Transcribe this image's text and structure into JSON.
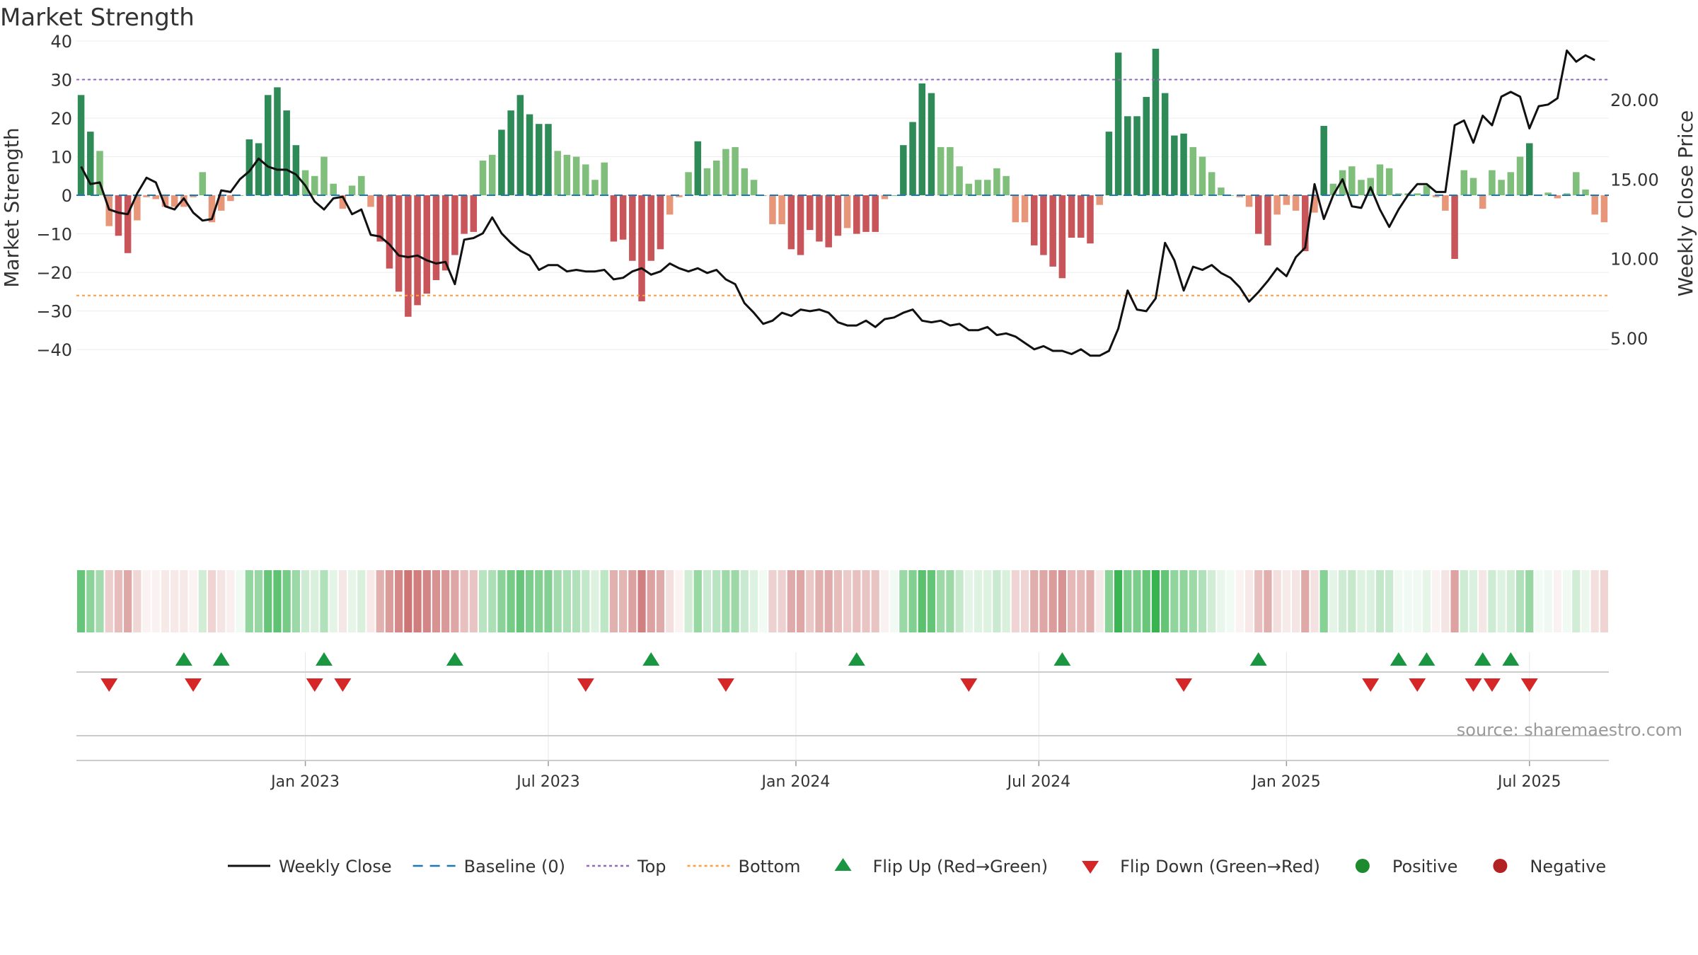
{
  "chart_data": {
    "type": "bar",
    "title": "Market Strength",
    "ylabel_left": "Market Strength",
    "ylabel_right": "Weekly Close Price",
    "source": "source: sharemaestro.com",
    "ylim_left": [
      -42,
      40
    ],
    "ylim_right": [
      3.8,
      23.7
    ],
    "yticks_left": [
      40,
      30,
      20,
      10,
      0,
      -10,
      -20,
      -30,
      -40
    ],
    "yticks_right": [
      {
        "value": 20,
        "label": "20.00"
      },
      {
        "value": 15,
        "label": "15.00"
      },
      {
        "value": 10,
        "label": "10.00"
      },
      {
        "value": 5,
        "label": "5.00"
      }
    ],
    "top_level": 30,
    "bottom_level": -26,
    "x_tick_labels": [
      {
        "week": 24,
        "label": "Jan 2023"
      },
      {
        "week": 50,
        "label": "Jul 2023"
      },
      {
        "week": 76.5,
        "label": "Jan 2024"
      },
      {
        "week": 102.5,
        "label": "Jul 2024"
      },
      {
        "week": 129,
        "label": "Jan 2025"
      },
      {
        "week": 155,
        "label": "Jul 2025"
      }
    ],
    "strength": [
      26,
      16.5,
      11.5,
      -8,
      -10.5,
      -15,
      -6.5,
      -0.5,
      -1,
      -3,
      -3,
      -3,
      -0.5,
      6,
      -7,
      -4,
      -1.5,
      0,
      14.5,
      13.5,
      26,
      28,
      22,
      13,
      6.5,
      5,
      10,
      3,
      -3.5,
      2.5,
      5,
      -3,
      -12,
      -19,
      -25,
      -31.5,
      -28.5,
      -25.5,
      -22,
      -19.5,
      -15.5,
      -10,
      -9.5,
      9,
      10.5,
      17,
      22,
      26,
      21,
      18.5,
      18.5,
      11.5,
      10.5,
      10,
      8,
      4,
      8.5,
      -12,
      -11.5,
      -17,
      -27.5,
      -17,
      -14,
      -5,
      -0.5,
      6,
      14,
      7,
      9,
      12,
      12.5,
      7,
      4,
      0,
      -7.5,
      -7.5,
      -14,
      -15.5,
      -9,
      -12,
      -13.5,
      -10.5,
      -8.5,
      -10,
      -9.5,
      -9.5,
      -1,
      0,
      13,
      19,
      29,
      26.5,
      12.5,
      12.5,
      7.5,
      3,
      4,
      4,
      7,
      5,
      -7,
      -7,
      -13,
      -15.5,
      -18.5,
      -21.5,
      -11,
      -11,
      -12.5,
      -2.5,
      16.5,
      37,
      20.5,
      20.5,
      25.5,
      38,
      26.5,
      15.5,
      16,
      12.5,
      10,
      6,
      2,
      0,
      -0.5,
      -3,
      -10,
      -13,
      -5,
      -2.5,
      -4,
      -14.5,
      -4.5,
      18,
      3,
      6.5,
      7.5,
      4,
      4.5,
      8,
      7,
      0.5,
      0.5,
      0.5,
      2.5,
      -0.5,
      -4,
      -16.5,
      6.5,
      4.5,
      -3.5,
      6.5,
      4,
      6,
      10,
      13.5,
      0,
      0.7,
      -0.8,
      0.5,
      6,
      1.5,
      -5,
      -7
    ],
    "weekly_close": [
      15.8,
      14.7,
      14.8,
      13.1,
      12.9,
      12.8,
      14.1,
      15.1,
      14.8,
      13.3,
      13.1,
      13.8,
      12.9,
      12.4,
      12.5,
      14.3,
      14.2,
      15,
      15.5,
      16.3,
      15.8,
      15.6,
      15.6,
      15.3,
      14.6,
      13.6,
      13.1,
      13.8,
      13.9,
      12.8,
      13.1,
      11.5,
      11.4,
      10.9,
      10.2,
      10.1,
      10.2,
      9.9,
      9.7,
      9.8,
      8.4,
      11.2,
      11.3,
      11.6,
      12.6,
      11.6,
      11,
      10.5,
      10.2,
      9.3,
      9.6,
      9.6,
      9.2,
      9.3,
      9.2,
      9.2,
      9.3,
      8.7,
      8.8,
      9.2,
      9.4,
      9,
      9.2,
      9.7,
      9.4,
      9.2,
      9.4,
      9.1,
      9.3,
      8.7,
      8.4,
      7.2,
      6.6,
      5.9,
      6.1,
      6.6,
      6.4,
      6.8,
      6.7,
      6.8,
      6.6,
      6,
      5.8,
      5.8,
      6.1,
      5.7,
      6.2,
      6.3,
      6.6,
      6.8,
      6.1,
      6,
      6.1,
      5.8,
      5.9,
      5.5,
      5.5,
      5.7,
      5.2,
      5.3,
      5.1,
      4.7,
      4.3,
      4.5,
      4.2,
      4.2,
      4,
      4.3,
      3.9,
      3.9,
      4.2,
      5.6,
      8,
      6.8,
      6.7,
      7.5,
      11,
      9.9,
      8,
      9.5,
      9.3,
      9.6,
      9.1,
      8.8,
      8.2,
      7.3,
      7.9,
      8.6,
      9.4,
      8.9,
      10.1,
      10.7,
      14.7,
      12.5,
      14,
      15,
      13.3,
      13.2,
      14.5,
      13.1,
      12,
      13.1,
      14,
      14.7,
      14.7,
      14.2,
      14.2,
      18.4,
      18.7,
      17.3,
      19,
      18.4,
      20.2,
      20.5,
      20.2,
      18.2,
      19.6,
      19.7,
      20.1,
      23.1,
      22.4,
      22.8,
      22.5
    ],
    "flip_up_weeks": [
      11,
      15,
      26,
      40,
      61,
      83,
      105,
      126,
      141,
      144,
      150,
      153
    ],
    "flip_down_weeks": [
      3,
      12,
      25,
      28,
      54,
      69,
      95,
      118,
      138,
      143,
      149,
      151,
      155
    ],
    "legend": [
      {
        "key": "weekly-close",
        "label": "Weekly Close"
      },
      {
        "key": "baseline",
        "label": "Baseline (0)"
      },
      {
        "key": "top",
        "label": "Top"
      },
      {
        "key": "bottom",
        "label": "Bottom"
      },
      {
        "key": "flip-up",
        "label": "Flip Up (Red→Green)"
      },
      {
        "key": "flip-down",
        "label": "Flip Down (Green→Red)"
      },
      {
        "key": "positive",
        "label": "Positive"
      },
      {
        "key": "negative",
        "label": "Negative"
      }
    ],
    "colors": {
      "strong_green": "#2e8b57",
      "light_green": "#7fbf7b",
      "strong_red": "#c8555a",
      "light_red": "#e8967a",
      "price_line": "#111111",
      "baseline": "#1f77b4",
      "top_line": "#9467bd",
      "bottom_line": "#ff9f40",
      "flip_up": "#1a9641",
      "flip_down": "#d62728",
      "positive": "#1e8a2e",
      "negative": "#b22222"
    }
  }
}
